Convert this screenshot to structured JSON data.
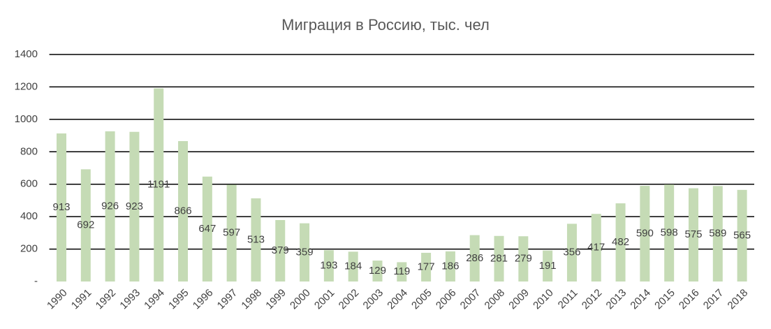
{
  "chart_data": {
    "type": "bar",
    "title": "Миграция в Россию, тыс. чел",
    "categories": [
      "1990",
      "1991",
      "1992",
      "1993",
      "1994",
      "1995",
      "1996",
      "1997",
      "1998",
      "1999",
      "2000",
      "2001",
      "2002",
      "2003",
      "2004",
      "2005",
      "2006",
      "2007",
      "2008",
      "2009",
      "2010",
      "2011",
      "2012",
      "2013",
      "2014",
      "2015",
      "2016",
      "2017",
      "2018"
    ],
    "values": [
      913,
      692,
      926,
      923,
      1191,
      866,
      647,
      597,
      513,
      379,
      359,
      193,
      184,
      129,
      119,
      177,
      186,
      286,
      281,
      279,
      191,
      356,
      417,
      482,
      590,
      598,
      575,
      589,
      565
    ],
    "color": "#c5dbb5",
    "ylim": [
      0,
      1400
    ],
    "yticks": [
      {
        "value": 0,
        "label": "-"
      },
      200,
      400,
      600,
      800,
      1000,
      1200,
      1400
    ],
    "grid": true
  }
}
